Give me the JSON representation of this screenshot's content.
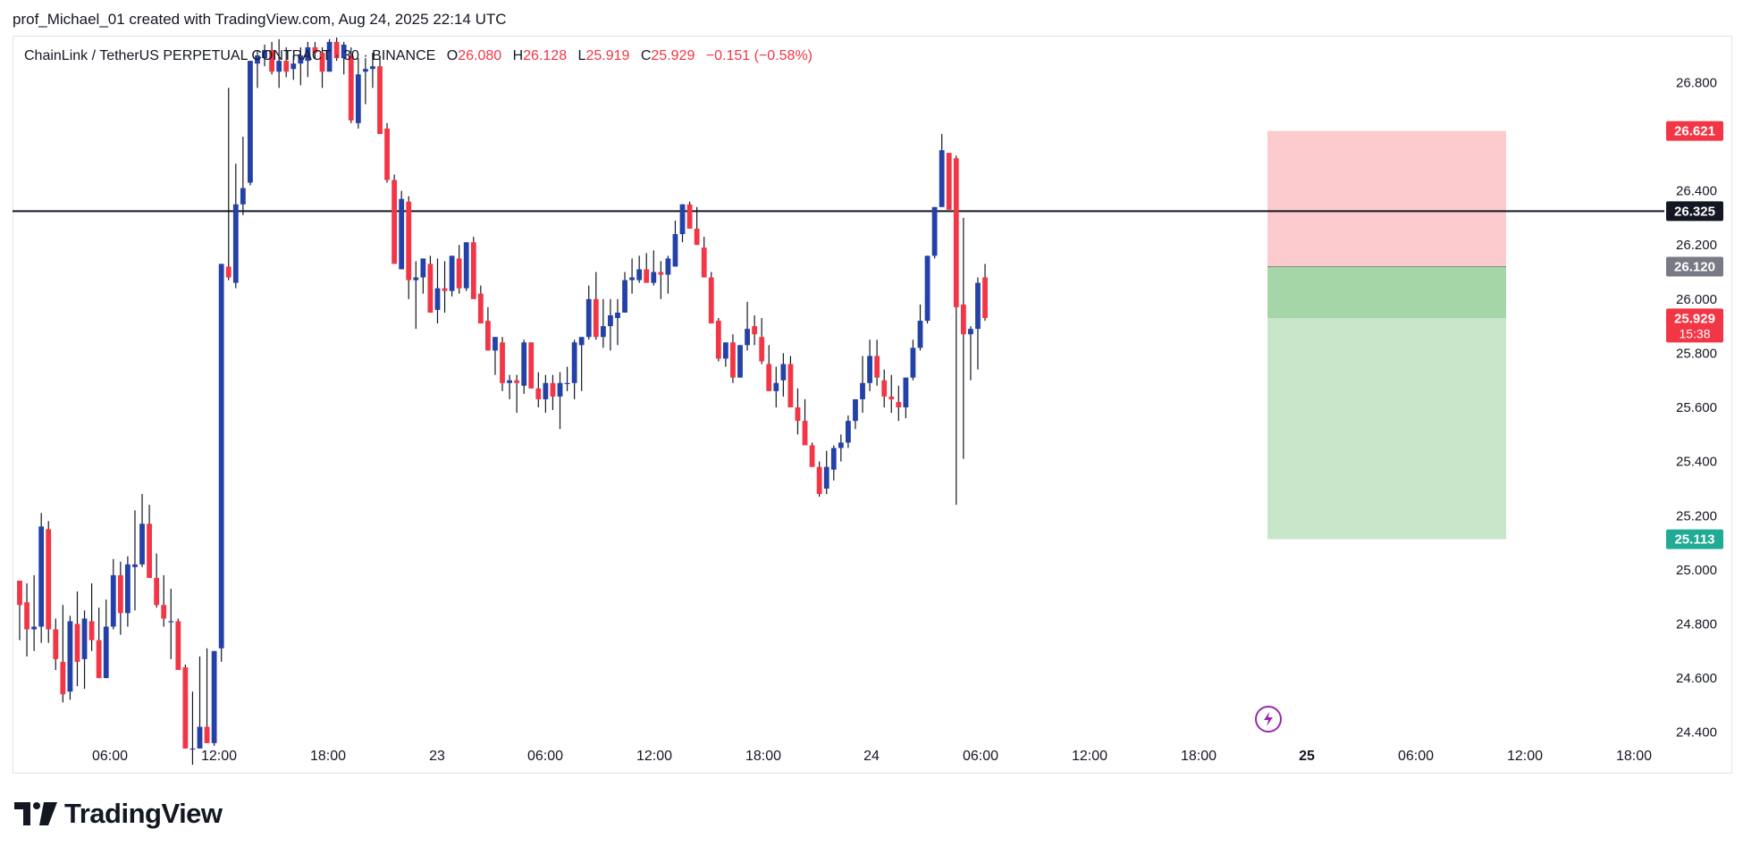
{
  "header": {
    "attribution": "prof_Michael_01 created with TradingView.com, Aug 24, 2025 22:14 UTC"
  },
  "legend": {
    "symbol": "ChainLink / TetherUS PERPETUAL CONTRACT · 30 · BINANCE",
    "open_label": "O",
    "open": "26.080",
    "high_label": "H",
    "high": "26.128",
    "low_label": "L",
    "low": "25.919",
    "close_label": "C",
    "close": "25.929",
    "change": "−0.151 (−0.58%)"
  },
  "footer": {
    "brand": "TradingView"
  },
  "icons": {
    "lightning": "lightning-icon",
    "logo": "tradingview-logo-icon"
  },
  "colors": {
    "up": "#2441a8",
    "down": "#f23645",
    "stop_zone": "#fccbcd",
    "target_zone": "#c8e6c9",
    "entry_zone": "#a5d6a7",
    "hline": "#131722",
    "target_label": "#22ab94"
  },
  "chart_data": {
    "type": "candlestick",
    "title": "",
    "ylim": [
      24.3,
      26.92
    ],
    "y_ticks": [
      "26.800",
      "26.400",
      "26.200",
      "26.000",
      "25.800",
      "25.600",
      "25.400",
      "25.200",
      "25.000",
      "24.800",
      "24.600",
      "24.400"
    ],
    "x_ticks": [
      "06:00",
      "12:00",
      "18:00",
      "23",
      "06:00",
      "12:00",
      "18:00",
      "24",
      "06:00",
      "12:00",
      "18:00",
      "25",
      "06:00",
      "12:00",
      "18:00"
    ],
    "price_labels": [
      {
        "value": "26.621",
        "kind": "stop"
      },
      {
        "value": "26.325",
        "kind": "level"
      },
      {
        "value": "26.120",
        "kind": "entry"
      },
      {
        "value": "25.929",
        "kind": "last",
        "countdown": "15:38"
      },
      {
        "value": "25.113",
        "kind": "target"
      }
    ],
    "horizontal_line": 26.325,
    "position": {
      "type": "short",
      "entry": 26.12,
      "stop": 26.621,
      "target": 25.113,
      "current": 25.929
    },
    "candles_ohlc": [
      [
        24.96,
        24.95,
        24.74,
        24.87
      ],
      [
        24.88,
        24.95,
        24.68,
        24.78
      ],
      [
        24.78,
        24.98,
        24.7,
        24.79
      ],
      [
        24.79,
        25.21,
        24.73,
        25.16
      ],
      [
        25.15,
        25.18,
        24.73,
        24.78
      ],
      [
        24.78,
        24.82,
        24.63,
        24.67
      ],
      [
        24.66,
        24.87,
        24.51,
        24.54
      ],
      [
        24.55,
        24.83,
        24.52,
        24.81
      ],
      [
        24.8,
        24.92,
        24.57,
        24.66
      ],
      [
        24.67,
        24.85,
        24.56,
        24.82
      ],
      [
        24.81,
        24.95,
        24.7,
        24.74
      ],
      [
        24.74,
        24.86,
        24.62,
        24.6
      ],
      [
        24.6,
        24.89,
        24.6,
        24.79
      ],
      [
        24.79,
        25.04,
        24.78,
        24.98
      ],
      [
        24.98,
        25.03,
        24.76,
        24.84
      ],
      [
        24.84,
        25.05,
        24.79,
        25.02
      ],
      [
        25.01,
        25.22,
        24.85,
        25.02
      ],
      [
        25.02,
        25.28,
        25.01,
        25.17
      ],
      [
        25.17,
        25.24,
        24.97,
        24.97
      ],
      [
        24.97,
        25.06,
        24.86,
        24.87
      ],
      [
        24.87,
        24.98,
        24.79,
        24.82
      ],
      [
        24.81,
        24.93,
        24.67,
        24.81
      ],
      [
        24.81,
        24.82,
        24.66,
        24.63
      ],
      [
        24.64,
        24.65,
        24.35,
        24.34
      ],
      [
        24.34,
        24.55,
        24.28,
        24.34
      ],
      [
        24.34,
        24.68,
        24.34,
        24.42
      ],
      [
        24.42,
        24.71,
        24.42,
        24.36
      ],
      [
        24.36,
        24.57,
        24.35,
        24.7
      ],
      [
        24.71,
        24.98,
        24.66,
        26.13
      ],
      [
        26.12,
        26.78,
        26.07,
        26.08
      ],
      [
        26.06,
        26.5,
        26.04,
        26.35
      ],
      [
        26.35,
        26.6,
        26.31,
        26.41
      ],
      [
        26.43,
        26.88,
        26.42,
        26.88
      ],
      [
        26.87,
        26.92,
        26.78,
        26.9
      ],
      [
        26.89,
        26.94,
        26.86,
        26.92
      ],
      [
        26.92,
        26.95,
        26.83,
        26.84
      ],
      [
        26.84,
        26.96,
        26.78,
        26.88
      ],
      [
        26.88,
        26.93,
        26.82,
        26.84
      ],
      [
        26.85,
        26.9,
        26.81,
        26.87
      ],
      [
        26.87,
        26.93,
        26.79,
        26.9
      ],
      [
        26.88,
        26.95,
        26.82,
        26.93
      ],
      [
        26.93,
        26.95,
        26.89,
        26.91
      ],
      [
        26.91,
        26.93,
        26.78,
        26.84
      ],
      [
        26.84,
        26.96,
        26.84,
        26.95
      ],
      [
        26.95,
        26.97,
        26.88,
        26.89
      ],
      [
        26.89,
        26.95,
        26.83,
        26.94
      ],
      [
        26.9,
        26.93,
        26.65,
        26.66
      ],
      [
        26.65,
        26.89,
        26.63,
        26.83
      ],
      [
        26.84,
        26.89,
        26.72,
        26.85
      ],
      [
        26.85,
        26.91,
        26.78,
        26.86
      ],
      [
        26.86,
        26.9,
        26.61,
        26.61
      ],
      [
        26.63,
        26.65,
        26.43,
        26.44
      ],
      [
        26.44,
        26.46,
        26.13,
        26.13
      ],
      [
        26.11,
        26.4,
        26.16,
        26.37
      ],
      [
        26.36,
        26.38,
        26.0,
        26.07
      ],
      [
        26.07,
        26.14,
        25.89,
        26.08
      ],
      [
        26.08,
        26.15,
        26.02,
        26.15
      ],
      [
        26.13,
        26.16,
        25.95,
        25.95
      ],
      [
        25.96,
        26.15,
        25.91,
        26.04
      ],
      [
        26.04,
        26.14,
        25.95,
        26.03
      ],
      [
        26.03,
        26.15,
        26.01,
        26.16
      ],
      [
        26.15,
        26.2,
        26.02,
        26.04
      ],
      [
        26.04,
        26.21,
        26.03,
        26.21
      ],
      [
        26.21,
        26.23,
        26.01,
        26.0
      ],
      [
        26.02,
        26.05,
        25.91,
        25.91
      ],
      [
        25.92,
        25.97,
        25.81,
        25.81
      ],
      [
        25.81,
        25.85,
        25.72,
        25.86
      ],
      [
        25.84,
        25.86,
        25.66,
        25.69
      ],
      [
        25.69,
        25.72,
        25.63,
        25.7
      ],
      [
        25.7,
        25.72,
        25.58,
        25.69
      ],
      [
        25.68,
        25.85,
        25.65,
        25.84
      ],
      [
        25.84,
        25.84,
        25.68,
        25.67
      ],
      [
        25.67,
        25.73,
        25.6,
        25.63
      ],
      [
        25.63,
        25.72,
        25.58,
        25.69
      ],
      [
        25.69,
        25.72,
        25.59,
        25.64
      ],
      [
        25.64,
        25.73,
        25.52,
        25.69
      ],
      [
        25.69,
        25.75,
        25.66,
        25.69
      ],
      [
        25.69,
        25.85,
        25.63,
        25.84
      ],
      [
        25.83,
        25.86,
        25.66,
        25.86
      ],
      [
        25.86,
        26.05,
        25.85,
        26.0
      ],
      [
        26.0,
        26.1,
        25.85,
        25.86
      ],
      [
        25.86,
        26.0,
        25.82,
        25.9
      ],
      [
        25.9,
        26.0,
        25.81,
        25.94
      ],
      [
        25.93,
        26.0,
        25.83,
        25.95
      ],
      [
        25.95,
        26.1,
        25.96,
        26.07
      ],
      [
        26.07,
        26.15,
        26.02,
        26.08
      ],
      [
        26.07,
        26.16,
        26.06,
        26.11
      ],
      [
        26.11,
        26.17,
        26.08,
        26.06
      ],
      [
        26.06,
        26.18,
        26.05,
        26.1
      ],
      [
        26.1,
        26.14,
        26.0,
        26.09
      ],
      [
        26.09,
        26.16,
        26.02,
        26.15
      ],
      [
        26.12,
        26.29,
        26.12,
        26.24
      ],
      [
        26.24,
        26.3,
        26.21,
        26.35
      ],
      [
        26.35,
        26.36,
        26.26,
        26.26
      ],
      [
        26.26,
        26.34,
        26.21,
        26.2
      ],
      [
        26.19,
        26.23,
        26.09,
        26.08
      ],
      [
        26.08,
        26.1,
        25.92,
        25.91
      ],
      [
        25.92,
        25.93,
        25.77,
        25.78
      ],
      [
        25.78,
        25.83,
        25.75,
        25.84
      ],
      [
        25.84,
        25.87,
        25.69,
        25.71
      ],
      [
        25.71,
        25.8,
        25.73,
        25.83
      ],
      [
        25.83,
        25.99,
        25.81,
        25.89
      ],
      [
        25.9,
        25.94,
        25.83,
        25.87
      ],
      [
        25.86,
        25.93,
        25.76,
        25.77
      ],
      [
        25.76,
        25.83,
        25.66,
        25.66
      ],
      [
        25.66,
        25.75,
        25.6,
        25.69
      ],
      [
        25.7,
        25.8,
        25.64,
        25.76
      ],
      [
        25.76,
        25.79,
        25.6,
        25.6
      ],
      [
        25.6,
        25.67,
        25.5,
        25.55
      ],
      [
        25.55,
        25.63,
        25.49,
        25.46
      ],
      [
        25.46,
        25.47,
        25.4,
        25.38
      ],
      [
        25.38,
        25.4,
        25.27,
        25.28
      ],
      [
        25.3,
        25.44,
        25.28,
        25.38
      ],
      [
        25.37,
        25.46,
        25.33,
        25.45
      ],
      [
        25.45,
        25.5,
        25.4,
        25.47
      ],
      [
        25.47,
        25.57,
        25.45,
        25.55
      ],
      [
        25.55,
        25.63,
        25.52,
        25.63
      ],
      [
        25.63,
        25.79,
        25.58,
        25.69
      ],
      [
        25.69,
        25.85,
        25.66,
        25.79
      ],
      [
        25.79,
        25.85,
        25.68,
        25.71
      ],
      [
        25.7,
        25.74,
        25.6,
        25.64
      ],
      [
        25.64,
        25.72,
        25.58,
        25.63
      ],
      [
        25.62,
        25.68,
        25.55,
        25.6
      ],
      [
        25.6,
        25.68,
        25.56,
        25.71
      ],
      [
        25.71,
        25.85,
        25.7,
        25.82
      ],
      [
        25.82,
        25.98,
        25.81,
        25.92
      ],
      [
        25.92,
        26.08,
        25.91,
        26.16
      ],
      [
        26.16,
        26.3,
        26.15,
        26.34
      ],
      [
        26.34,
        26.61,
        26.35,
        26.55
      ],
      [
        26.54,
        26.47,
        26.5,
        26.33
      ],
      [
        26.52,
        26.53,
        25.24,
        25.97
      ],
      [
        25.98,
        26.3,
        25.41,
        25.87
      ],
      [
        25.87,
        25.9,
        25.7,
        25.89
      ],
      [
        25.89,
        26.08,
        25.74,
        26.06
      ],
      [
        26.08,
        26.13,
        25.92,
        25.93
      ]
    ]
  }
}
